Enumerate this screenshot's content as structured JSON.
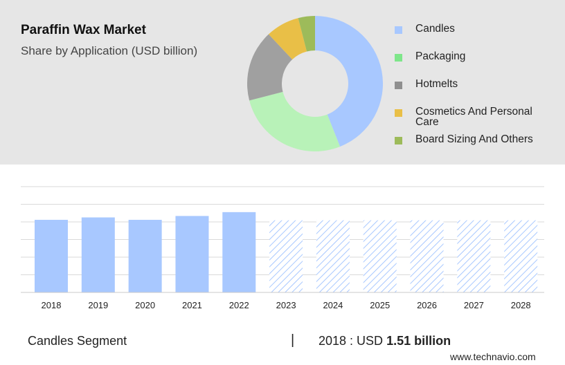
{
  "header": {
    "title": "Paraffin Wax Market",
    "subtitle": "Share by Application (USD billion)"
  },
  "colors": {
    "panel_bg": "#e6e6e6",
    "bar_actual": "#a8c8ff",
    "bar_forecast_stripe": "#a8c8ff",
    "grid": "#d9d9d9"
  },
  "donut_chart": {
    "type": "pie",
    "slices": [
      {
        "label": "Candles",
        "value": 44,
        "color": "#a8c8ff"
      },
      {
        "label": "Packaging",
        "value": 27,
        "color": "#b8f2b8"
      },
      {
        "label": "Hotmelts",
        "value": 17,
        "color": "#a0a0a0"
      },
      {
        "label": "Cosmetics And Personal Care",
        "value": 8,
        "color": "#e9bf47"
      },
      {
        "label": "Board Sizing And Others",
        "value": 4,
        "color": "#9dbb5a"
      }
    ]
  },
  "legend": [
    {
      "label": "Candles",
      "color": "#a8c8ff"
    },
    {
      "label": "Packaging",
      "color": "#7ee68a"
    },
    {
      "label": "Hotmelts",
      "color": "#8f8f8f"
    },
    {
      "label": "Cosmetics And Personal Care",
      "color": "#e9bf47"
    },
    {
      "label": "Board Sizing And Others",
      "color": "#9dbb5a"
    }
  ],
  "chart_data": {
    "type": "bar",
    "categories": [
      "2018",
      "2019",
      "2020",
      "2021",
      "2022",
      "2023",
      "2024",
      "2025",
      "2026",
      "2027",
      "2028"
    ],
    "values": [
      1.51,
      1.56,
      1.51,
      1.59,
      1.67,
      1.5,
      1.5,
      1.5,
      1.5,
      1.5,
      1.5
    ],
    "forecast_from": "2023",
    "ylim": [
      0,
      2.2
    ],
    "grid": true,
    "xlabel": "",
    "ylabel": ""
  },
  "footer": {
    "segment": "Candles Segment",
    "divider": "|",
    "stat_prefix": "2018 : USD ",
    "stat_value": "1.51 billion",
    "watermark": "www.technavio.com"
  }
}
